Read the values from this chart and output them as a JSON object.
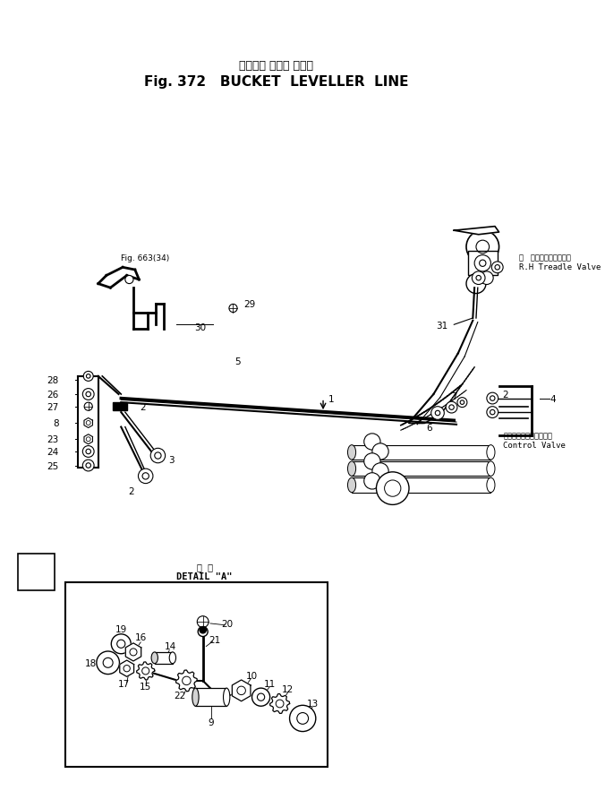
{
  "title_japanese": "バケット レベラ ライン",
  "title_english": "Fig. 372   BUCKET  LEVELLER  LINE",
  "detail_label_japanese": "げ 部",
  "detail_label_english": "DETAIL \"A\"",
  "fig_ref": "Fig. 663(34)",
  "rh_treadle_japanese": "右   トレドル･バルブ",
  "rh_treadle_english": "R.H Treadle Valve",
  "control_valve_japanese": "コントロール･ハルブ",
  "control_valve_english": "Control Valve",
  "bg_color": "#ffffff",
  "figsize": [
    6.76,
    9.03
  ],
  "dpi": 100
}
